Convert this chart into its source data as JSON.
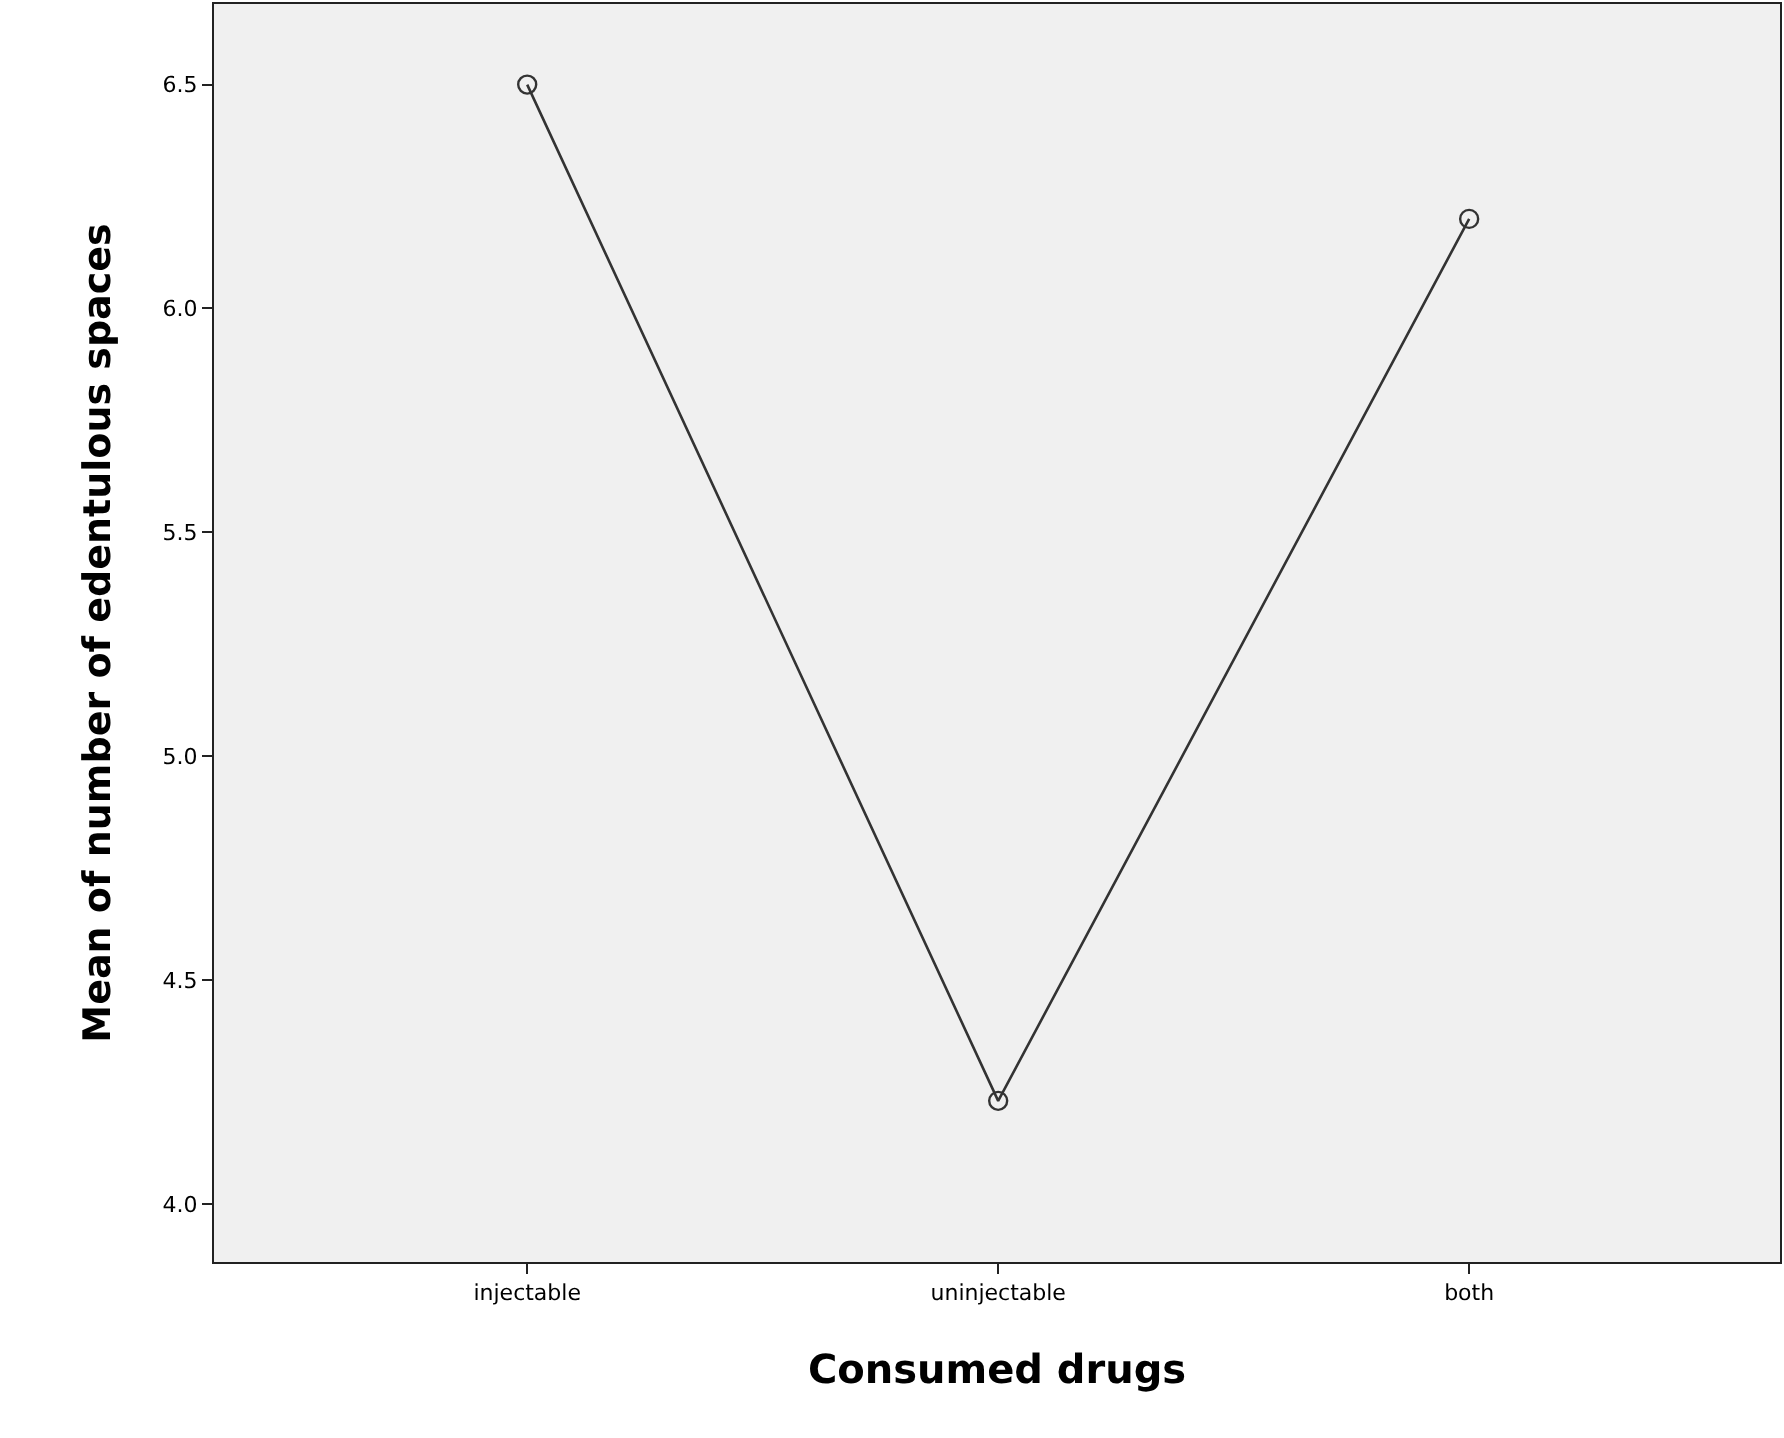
{
  "chart_data": {
    "type": "line",
    "xlabel": "Consumed drugs",
    "ylabel": "Mean of number of edentulous spaces",
    "categories": [
      "injectable",
      "uninjectable",
      "both"
    ],
    "series": [
      {
        "color": "#333333",
        "values": [
          6.5,
          4.23,
          6.2
        ]
      }
    ],
    "ylim": [
      3.87,
      6.68
    ],
    "yticks": [
      {
        "value": 4,
        "label": "4.0"
      },
      {
        "value": 4.5,
        "label": "4.5"
      },
      {
        "value": 5,
        "label": "5.0"
      },
      {
        "value": 5.5,
        "label": "5.5"
      },
      {
        "value": 6,
        "label": "6.0"
      },
      {
        "value": 6.5,
        "label": "6.5"
      }
    ],
    "grid": false,
    "marker": "circle",
    "line_style": "solid"
  }
}
